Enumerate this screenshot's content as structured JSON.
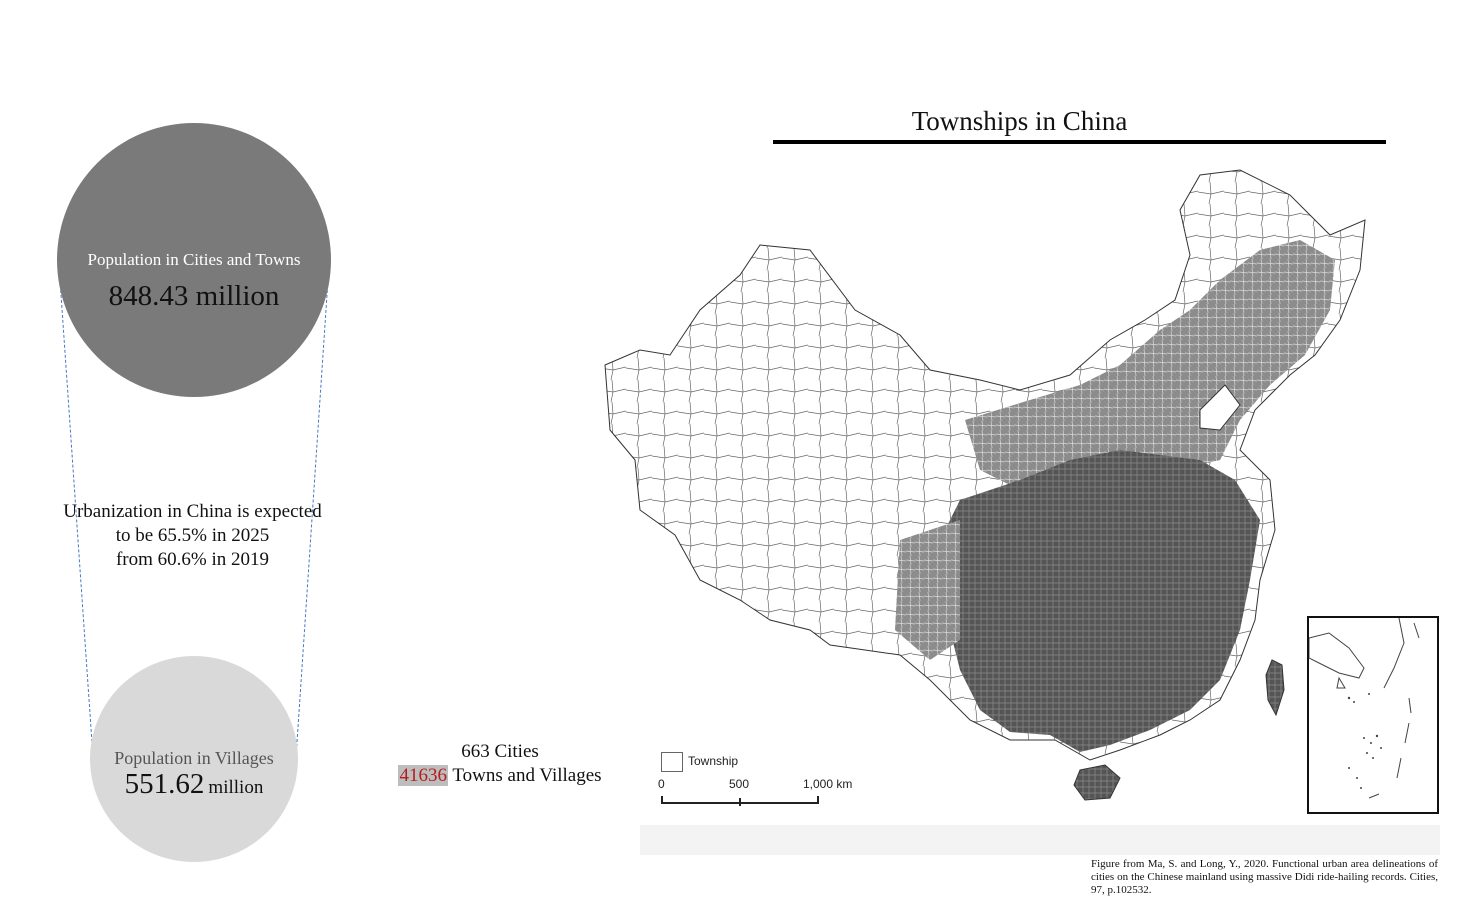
{
  "urban_circle": {
    "label": "Population in Cities and Towns",
    "value": "848.43 million",
    "color": "#7a7a7a"
  },
  "rural_circle": {
    "label": "Population in Villages",
    "value": "551.62",
    "unit": "million",
    "color": "#d9d9d9"
  },
  "urbanization_text": {
    "line1": "Urbanization in China is expected",
    "line2": "to be 65.5% in 2025",
    "line3": "from 60.6% in 2019"
  },
  "settlements": {
    "cities": "663 Cities",
    "towns_count": "41636",
    "towns_label": "Towns and Villages",
    "highlight_color": "#b71c1c"
  },
  "map": {
    "title": "Townships in China",
    "legend_label": "Township",
    "scale_labels": [
      "0",
      "500",
      "1,000 km"
    ]
  },
  "citation": "Figure from Ma, S. and Long, Y., 2020. Functional urban area delineations of cities on the Chinese mainland using massive Didi ride-hailing records. Cities, 97, p.102532."
}
